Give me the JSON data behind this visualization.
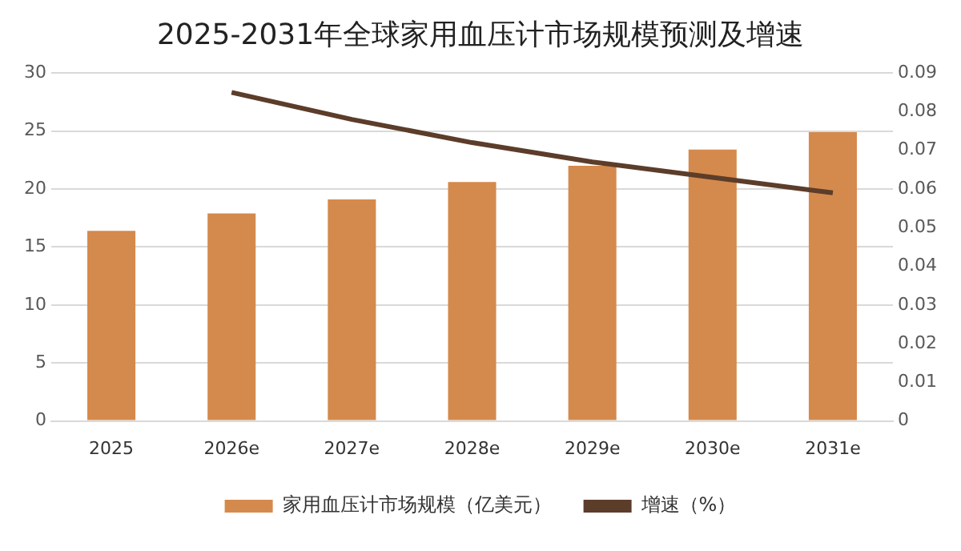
{
  "chart_data": {
    "type": "bar",
    "title": "2025-2031年全球家用血压计市场规模预测及增速",
    "categories": [
      "2025",
      "2026e",
      "2027e",
      "2028e",
      "2029e",
      "2030e",
      "2031e"
    ],
    "series": [
      {
        "name": "家用血压计市场规模（亿美元）",
        "color": "#d48a4c",
        "values": [
          16.4,
          17.9,
          19.1,
          20.6,
          22.0,
          23.4,
          24.9
        ]
      },
      {
        "name": "增速（%）",
        "type": "line",
        "axis": "y2",
        "color": "#5c3d2a",
        "values": [
          null,
          0.085,
          0.078,
          0.072,
          0.067,
          0.063,
          0.059
        ]
      }
    ],
    "ylim": [
      0,
      30
    ],
    "yticks": [
      0,
      5,
      10,
      15,
      20,
      25,
      30
    ],
    "y2lim": [
      0,
      0.09
    ],
    "y2ticks": [
      0,
      0.01,
      0.02,
      0.03,
      0.04,
      0.05,
      0.06,
      0.07,
      0.08,
      0.09
    ],
    "grid": "y",
    "legend": "bottom",
    "marker": "none"
  }
}
